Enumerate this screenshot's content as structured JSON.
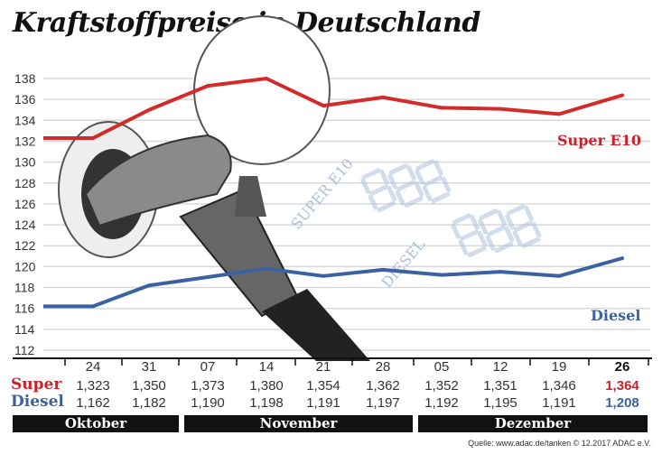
{
  "chart_data": {
    "type": "line",
    "title": "Kraftstoffpreise in Deutschland",
    "categories": [
      "24",
      "31",
      "07",
      "14",
      "21",
      "28",
      "05",
      "12",
      "19",
      "26"
    ],
    "months": [
      "Oktober",
      "November",
      "Dezember"
    ],
    "series": [
      {
        "name": "Super E10",
        "row_label": "Super",
        "color": "#d42a2a",
        "values": [
          132.3,
          135.0,
          137.3,
          138.0,
          135.4,
          136.2,
          135.2,
          135.1,
          134.6,
          136.4
        ],
        "table": [
          "1,323",
          "1,350",
          "1,373",
          "1,380",
          "1,354",
          "1,362",
          "1,352",
          "1,351",
          "1,346",
          "1,364"
        ]
      },
      {
        "name": "Diesel",
        "row_label": "Diesel",
        "color": "#3a62a0",
        "values": [
          116.2,
          118.2,
          119.0,
          119.8,
          119.1,
          119.7,
          119.2,
          119.5,
          119.1,
          120.8
        ],
        "table": [
          "1,162",
          "1,182",
          "1,190",
          "1,198",
          "1,191",
          "1,197",
          "1,192",
          "1,195",
          "1,191",
          "1,208"
        ]
      }
    ],
    "yticks": [
      112,
      114,
      116,
      118,
      120,
      122,
      124,
      126,
      128,
      130,
      132,
      134,
      136,
      138
    ],
    "ylim": [
      112,
      139
    ],
    "grid": true,
    "source": "Quelle: www.adac.de/tanken  © 12.2017  ADAC e.V.",
    "illustration_text": [
      "SUPER E10",
      "DIESEL"
    ]
  }
}
